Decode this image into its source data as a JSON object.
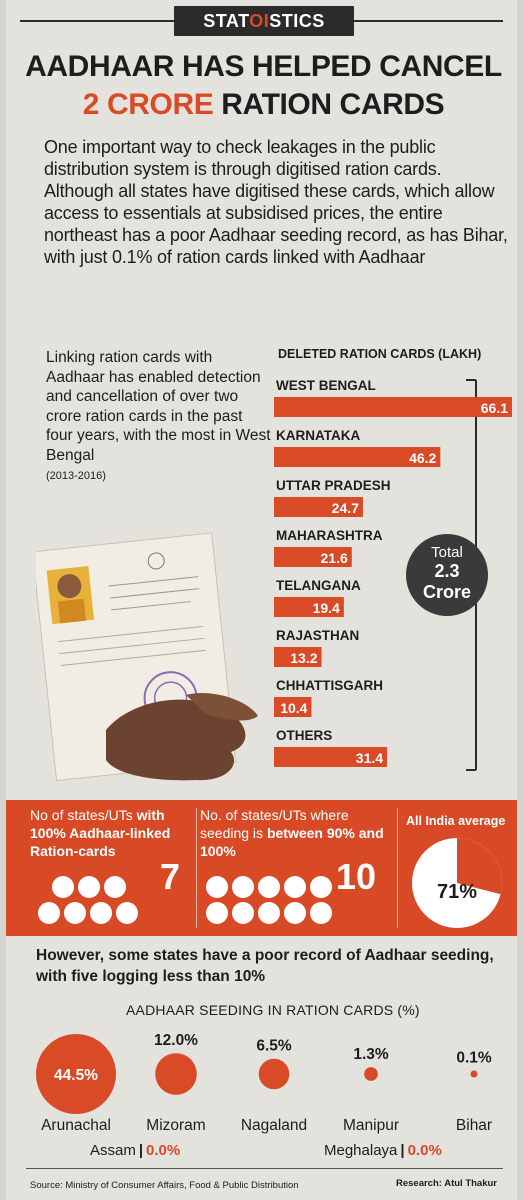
{
  "masthead": {
    "pre": "STAT",
    "accent": "OI",
    "post": "STICS"
  },
  "headline": {
    "line1": "AADHAAR HAS HELPED CANCEL",
    "line2_red": "2 CRORE",
    "line2_rest": " RATION CARDS"
  },
  "intro": "One important way to check leakages in the public distribution system is through digitised ration cards. Although all states have digitised these cards, which allow access to essentials at subsidised prices, the entire northeast has a poor Aadhaar seeding record, as has Bihar, with just 0.1% of ration cards linked with Aadhaar",
  "sidetext": {
    "body": "Linking ration cards with Aadhaar has enabled detection and cancellation of over two crore ration cards in the past four years, with the most in West Bengal",
    "years": "(2013-2016)"
  },
  "total": {
    "label": "Total",
    "value": "2.3",
    "unit": "Crore"
  },
  "band": {
    "states100_pre": "No of states/UTs ",
    "states100_bold": "with 100% Aadhaar-linked Ration-cards",
    "states100_count": "7",
    "states90_pre": "No. of states/UTs where seeding is ",
    "states90_bold": "between 90% and 100%",
    "states90_count": "10",
    "avg_title": "All India average",
    "avg_value": "71%"
  },
  "band_data": {
    "states100": 7,
    "states90": 10,
    "avg_fraction": 0.71
  },
  "subhead": "However, some states have a poor record of Aadhaar seeding, with five logging less than 10%",
  "zero_states": [
    {
      "name": "Assam",
      "value": "0.0%"
    },
    {
      "name": "Meghalaya",
      "value": "0.0%"
    }
  ],
  "footer": {
    "source": "Source: Ministry of Consumer Affairs, Food & Public Distribution",
    "research": "Research: Atul Thakur"
  },
  "colors": {
    "accent": "#d94a27",
    "dark": "#2b2b2b",
    "paper": "#e4e2dd"
  },
  "chart_data": [
    {
      "type": "bar",
      "title": "DELETED RATION CARDS (LAKH)",
      "categories": [
        "WEST BENGAL",
        "KARNATAKA",
        "UTTAR PRADESH",
        "MAHARASHTRA",
        "TELANGANA",
        "RAJASTHAN",
        "CHHATTISGARH",
        "OTHERS"
      ],
      "values": [
        66.1,
        46.2,
        24.7,
        21.6,
        19.4,
        13.2,
        10.4,
        31.4
      ],
      "value_labels": [
        "66.1",
        "46.2",
        "24.7",
        "21.6",
        "19.4",
        "13.2",
        "10.4",
        "31.4"
      ],
      "xlim": [
        0,
        66.1
      ]
    },
    {
      "type": "bubble",
      "title": "AADHAAR SEEDING IN RATION CARDS (%)",
      "categories": [
        "Arunachal",
        "Mizoram",
        "Nagaland",
        "Manipur",
        "Bihar"
      ],
      "values": [
        44.5,
        12.0,
        6.5,
        1.3,
        0.1
      ],
      "value_labels": [
        "44.5%",
        "12.0%",
        "6.5%",
        "1.3%",
        "0.1%"
      ]
    }
  ]
}
